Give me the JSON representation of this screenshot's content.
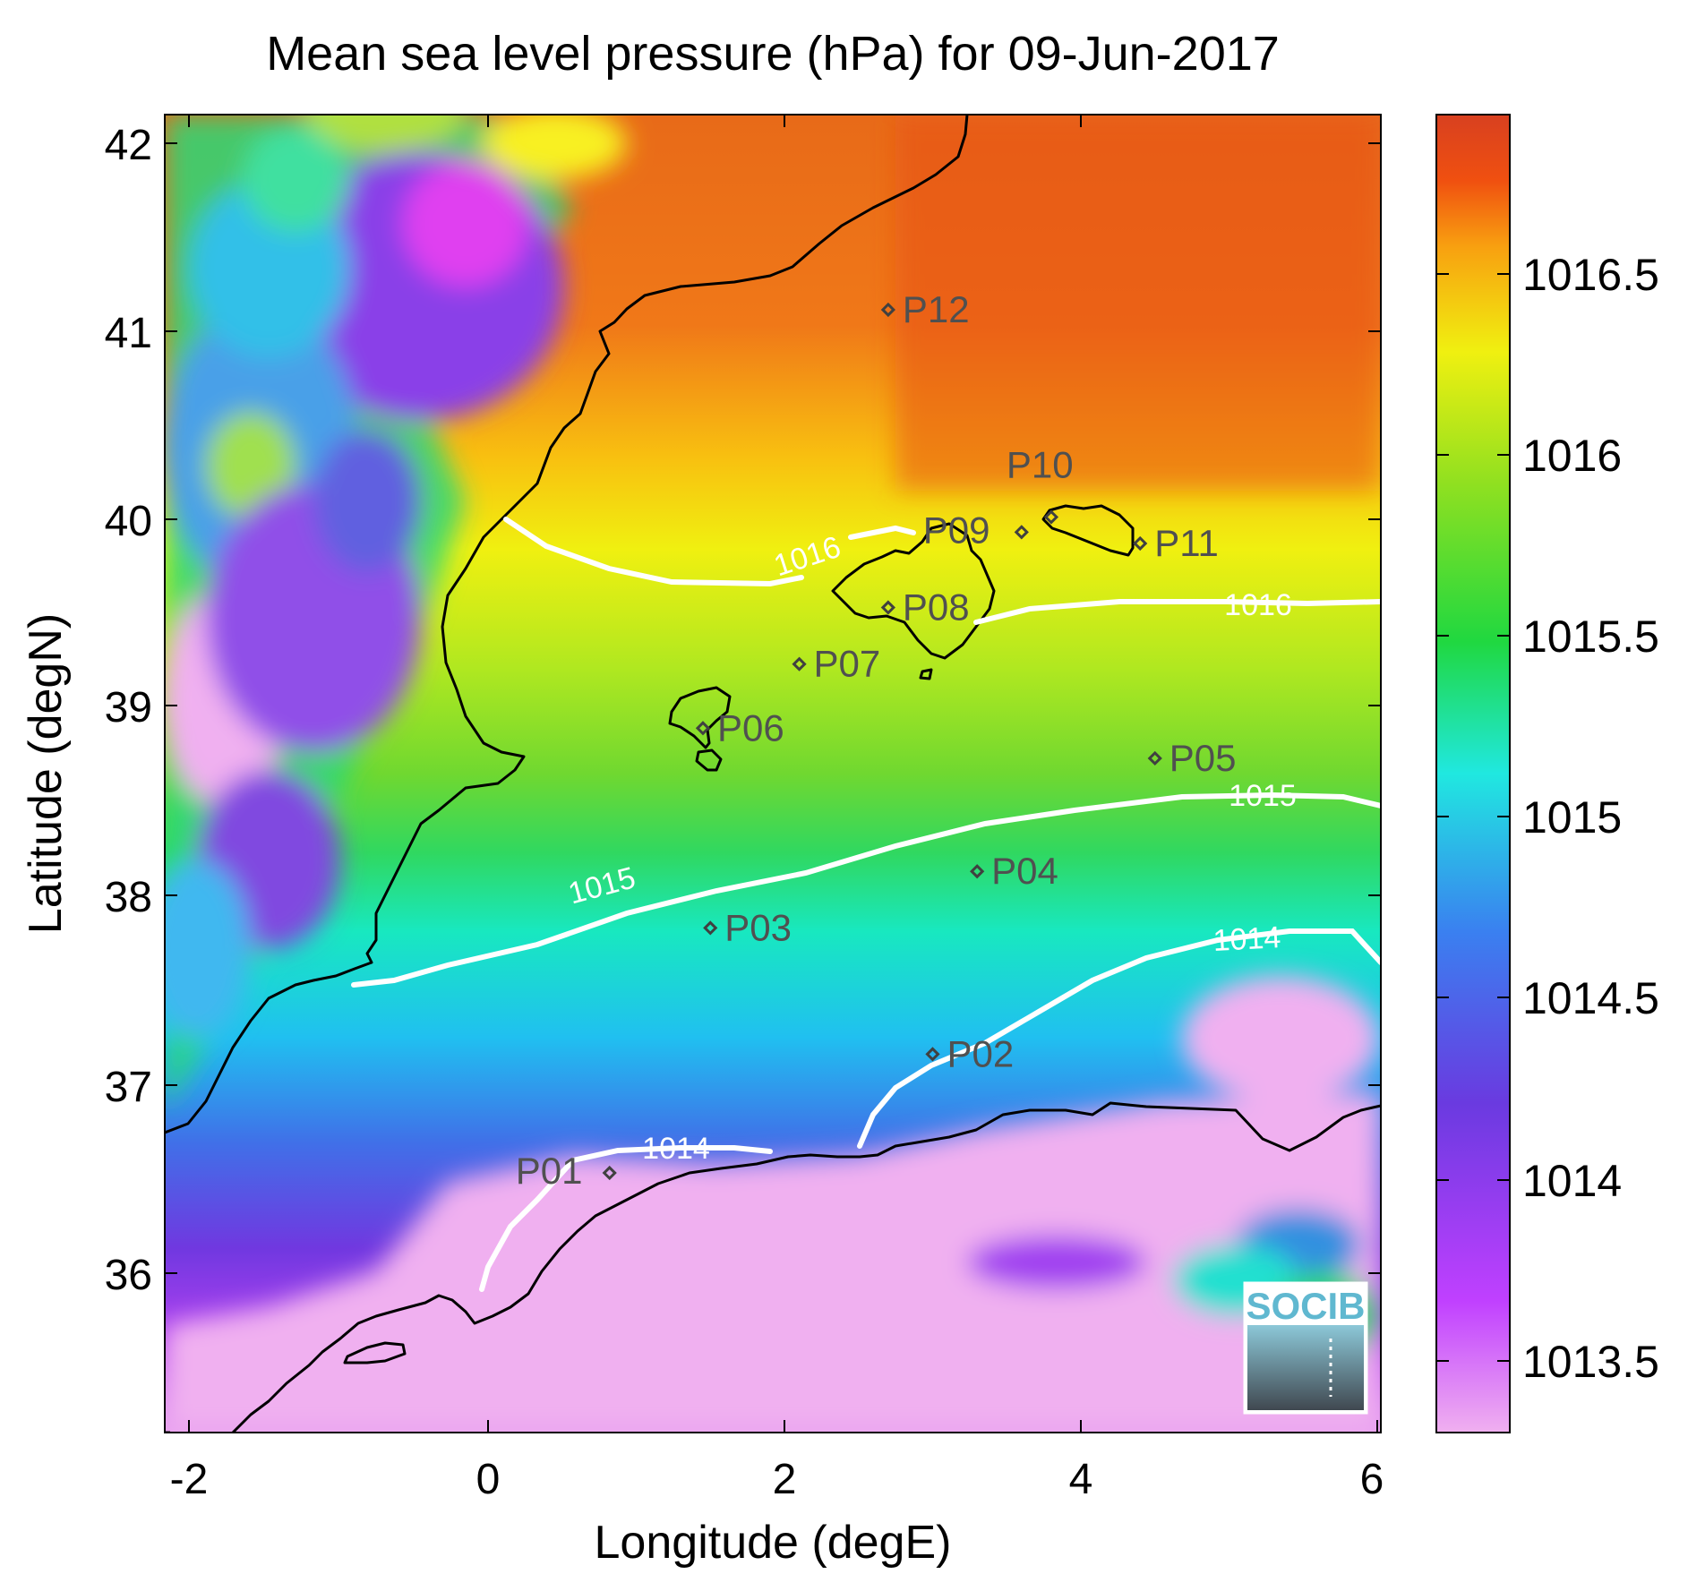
{
  "title": "Mean sea level pressure (hPa) for 09-Jun-2017",
  "xlabel": "Longitude (degE)",
  "ylabel": "Latitude (degN)",
  "x_ticks": [
    "-2",
    "0",
    "2",
    "4",
    "6"
  ],
  "y_ticks": [
    "42",
    "41",
    "40",
    "39",
    "38",
    "37",
    "36"
  ],
  "colorbar": {
    "ticks": [
      "1016.5",
      "1016",
      "1015.5",
      "1015",
      "1014.5",
      "1014",
      "1013.5"
    ],
    "range": [
      1013.3,
      1016.95
    ],
    "colors": [
      "#f0b0f0",
      "#c040ff",
      "#6a3ae0",
      "#3a80f0",
      "#20e8e0",
      "#20d840",
      "#90e020",
      "#f0f010",
      "#f8a010",
      "#f05010",
      "#d84020"
    ]
  },
  "contour_labels": [
    "1016",
    "1016",
    "1015",
    "1015",
    "1014",
    "1014"
  ],
  "stations": [
    {
      "id": "P01",
      "lon": 0.82,
      "lat": 36.52
    },
    {
      "id": "P02",
      "lon": 3.0,
      "lat": 37.15
    },
    {
      "id": "P03",
      "lon": 1.5,
      "lat": 37.82
    },
    {
      "id": "P04",
      "lon": 3.3,
      "lat": 38.12
    },
    {
      "id": "P05",
      "lon": 4.5,
      "lat": 38.72
    },
    {
      "id": "P06",
      "lon": 1.45,
      "lat": 38.88
    },
    {
      "id": "P07",
      "lon": 2.1,
      "lat": 39.22
    },
    {
      "id": "P08",
      "lon": 2.7,
      "lat": 39.52
    },
    {
      "id": "P09",
      "lon": 3.6,
      "lat": 39.92
    },
    {
      "id": "P10",
      "lon": 3.8,
      "lat": 40.0
    },
    {
      "id": "P11",
      "lon": 4.4,
      "lat": 39.86
    },
    {
      "id": "P12",
      "lon": 2.7,
      "lat": 41.1
    }
  ],
  "logo_text": "SOCIB"
}
